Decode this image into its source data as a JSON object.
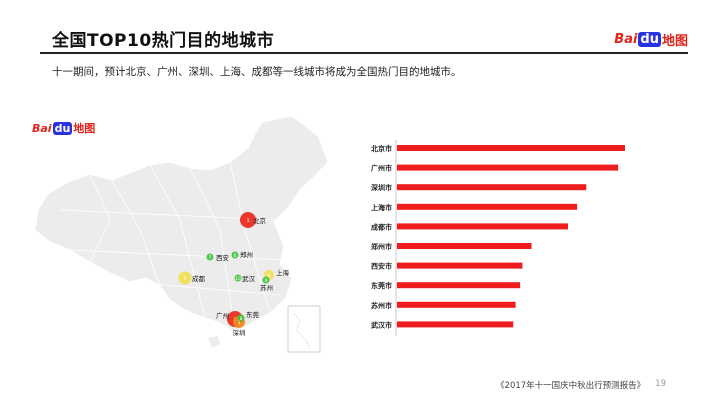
{
  "header": {
    "title": "全国TOP10热门目的地城市",
    "subtitle": "十一期间，预计北京、广州、深圳、上海、成都等一线城市将成为全国热门目的地城市。"
  },
  "logo": {
    "bai": "Bai",
    "du": "du",
    "map": "地图"
  },
  "map": {
    "markers": [
      {
        "label": "北京",
        "rank": "1",
        "color": "#e8291c"
      },
      {
        "label": "广州",
        "rank": "2",
        "color": "#e8291c"
      },
      {
        "label": "深圳",
        "rank": "3",
        "color": "#f08a1c"
      },
      {
        "label": "上海",
        "rank": "4",
        "color": "#f0e050"
      },
      {
        "label": "成都",
        "rank": "5",
        "color": "#f0e050"
      },
      {
        "label": "郑州",
        "rank": "6",
        "color": "#3fc43f"
      },
      {
        "label": "西安",
        "rank": "7",
        "color": "#3fc43f"
      },
      {
        "label": "东莞",
        "rank": "8",
        "color": "#3fc43f"
      },
      {
        "label": "苏州",
        "rank": "9",
        "color": "#3fc43f"
      },
      {
        "label": "武汉",
        "rank": "10",
        "color": "#3fc43f"
      }
    ]
  },
  "chart_data": {
    "type": "bar",
    "orientation": "horizontal",
    "categories": [
      "北京市",
      "广州市",
      "深圳市",
      "上海市",
      "成都市",
      "郑州市",
      "西安市",
      "东莞市",
      "苏州市",
      "武汉市"
    ],
    "values": [
      100,
      97,
      83,
      79,
      75,
      59,
      55,
      54,
      52,
      51
    ],
    "bar_color": "#ee1c1c",
    "xlim": [
      0,
      100
    ],
    "grid": false
  },
  "footer": {
    "report": "《2017年十一国庆中秋出行预测报告》",
    "page": "19"
  }
}
